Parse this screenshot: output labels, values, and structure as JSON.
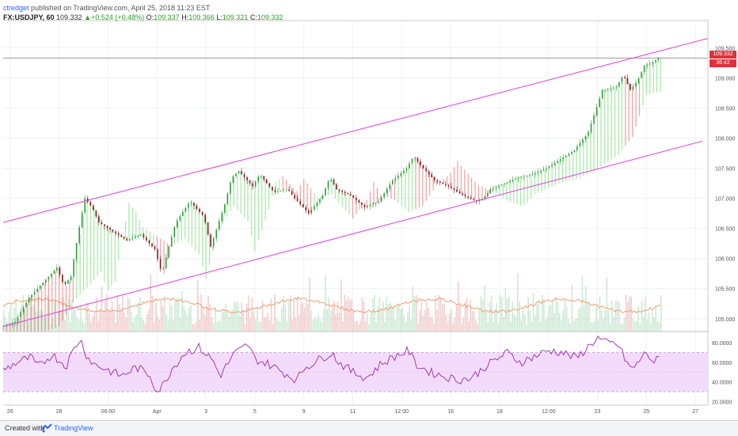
{
  "header": {
    "author": "ctredget",
    "published": "published on TradingView.com, April 25, 2018 11:23 EST",
    "symbol": "FX:USDJPY, 60",
    "last": "109.332",
    "change": "+0.524 (+0.48%)",
    "open_label": "O:",
    "open": "109.337",
    "high_label": "H:",
    "high": "109.366",
    "low_label": "L:",
    "low": "109.321",
    "close_label": "C:",
    "close": "109.332"
  },
  "price_tag": {
    "price": "109.332",
    "countdown": "36:42"
  },
  "footer": {
    "created": "Created with",
    "brand": "TradingView"
  },
  "colors": {
    "up_candle": "#2e9e3a",
    "down_candle": "#7a1d1d",
    "ribbon_bull": "#3ecf3e",
    "ribbon_bear": "#e03030",
    "channel": "#e24de0",
    "rsi_line": "#9c27b0",
    "rsi_band": "#f3dcfb",
    "vol_ma": "#f0a070"
  },
  "chart_data": [
    {
      "type": "line",
      "name": "price",
      "y_ticks": [
        "109.500",
        "109.000",
        "108.500",
        "108.000",
        "107.500",
        "107.000",
        "106.500",
        "106.000",
        "105.500",
        "105.000"
      ],
      "ylim": [
        104.8,
        109.9
      ],
      "x_ticks": [
        "26",
        "28",
        "06:00",
        "Apr",
        "3",
        "5",
        "9",
        "11",
        "12:00",
        "16",
        "18",
        "12:00",
        "23",
        "25",
        "27"
      ],
      "price_path": [
        [
          0,
          104.87
        ],
        [
          2,
          104.95
        ],
        [
          4,
          105.35
        ],
        [
          6,
          105.6
        ],
        [
          8,
          105.85
        ],
        [
          9,
          105.55
        ],
        [
          10,
          105.7
        ],
        [
          11,
          106.4
        ],
        [
          12,
          107.0
        ],
        [
          13,
          106.85
        ],
        [
          14,
          106.6
        ],
        [
          16,
          106.45
        ],
        [
          18,
          106.3
        ],
        [
          20,
          106.4
        ],
        [
          22,
          106.15
        ],
        [
          23,
          105.75
        ],
        [
          24,
          106.2
        ],
        [
          25,
          106.6
        ],
        [
          27,
          106.95
        ],
        [
          29,
          106.7
        ],
        [
          30,
          106.2
        ],
        [
          32,
          106.9
        ],
        [
          33,
          107.35
        ],
        [
          34,
          107.45
        ],
        [
          36,
          107.2
        ],
        [
          37,
          107.4
        ],
        [
          39,
          107.1
        ],
        [
          41,
          107.15
        ],
        [
          42,
          107.0
        ],
        [
          44,
          106.75
        ],
        [
          46,
          107.05
        ],
        [
          47,
          107.35
        ],
        [
          48,
          107.15
        ],
        [
          50,
          107.05
        ],
        [
          52,
          106.85
        ],
        [
          54,
          106.95
        ],
        [
          56,
          107.3
        ],
        [
          58,
          107.5
        ],
        [
          59,
          107.7
        ],
        [
          60,
          107.55
        ],
        [
          62,
          107.3
        ],
        [
          64,
          107.2
        ],
        [
          66,
          107.05
        ],
        [
          68,
          106.95
        ],
        [
          69,
          107.0
        ],
        [
          70,
          107.15
        ],
        [
          72,
          107.25
        ],
        [
          74,
          107.35
        ],
        [
          76,
          107.4
        ],
        [
          78,
          107.5
        ],
        [
          80,
          107.65
        ],
        [
          82,
          107.8
        ],
        [
          84,
          108.1
        ],
        [
          85,
          108.45
        ],
        [
          86,
          108.8
        ],
        [
          88,
          108.85
        ],
        [
          89,
          109.05
        ],
        [
          90,
          108.8
        ],
        [
          91,
          108.95
        ],
        [
          92,
          109.2
        ],
        [
          93,
          109.25
        ],
        [
          94,
          109.33
        ]
      ],
      "ribbon_bear_segments": [
        [
          0,
          10
        ],
        [
          22,
          24
        ],
        [
          40,
          44
        ],
        [
          50,
          56
        ],
        [
          59,
          70
        ],
        [
          89,
          91
        ]
      ],
      "channel_upper": [
        [
          0,
          106.6
        ],
        [
          94,
          109.45
        ]
      ],
      "channel_lower": [
        [
          0,
          104.87
        ],
        [
          94,
          107.65
        ],
        [
          100,
          107.95
        ]
      ],
      "last_price_line": 109.332
    },
    {
      "type": "bar",
      "name": "volume",
      "x_index_range": [
        0,
        94
      ]
    },
    {
      "type": "line",
      "name": "rsi",
      "y_ticks": [
        "80.0000",
        "60.0000",
        "40.0000",
        "20.0000"
      ],
      "ylim": [
        18,
        88
      ],
      "band": [
        30,
        70
      ],
      "midline": 50,
      "rsi_values": [
        [
          0,
          52
        ],
        [
          2,
          60
        ],
        [
          4,
          65
        ],
        [
          5,
          55
        ],
        [
          7,
          68
        ],
        [
          9,
          56
        ],
        [
          10,
          72
        ],
        [
          11,
          84
        ],
        [
          12,
          66
        ],
        [
          13,
          58
        ],
        [
          15,
          52
        ],
        [
          17,
          46
        ],
        [
          19,
          55
        ],
        [
          21,
          47
        ],
        [
          22,
          30
        ],
        [
          23,
          38
        ],
        [
          24,
          52
        ],
        [
          26,
          70
        ],
        [
          28,
          75
        ],
        [
          30,
          62
        ],
        [
          31,
          46
        ],
        [
          33,
          68
        ],
        [
          35,
          78
        ],
        [
          36,
          63
        ],
        [
          38,
          58
        ],
        [
          40,
          50
        ],
        [
          42,
          42
        ],
        [
          43,
          54
        ],
        [
          45,
          62
        ],
        [
          47,
          70
        ],
        [
          48,
          60
        ],
        [
          50,
          50
        ],
        [
          52,
          44
        ],
        [
          54,
          58
        ],
        [
          56,
          66
        ],
        [
          58,
          72
        ],
        [
          59,
          58
        ],
        [
          61,
          50
        ],
        [
          63,
          46
        ],
        [
          65,
          42
        ],
        [
          67,
          44
        ],
        [
          69,
          56
        ],
        [
          71,
          65
        ],
        [
          72,
          70
        ],
        [
          74,
          60
        ],
        [
          76,
          66
        ],
        [
          78,
          72
        ],
        [
          80,
          70
        ],
        [
          82,
          64
        ],
        [
          84,
          78
        ],
        [
          85,
          85
        ],
        [
          86,
          80
        ],
        [
          88,
          78
        ],
        [
          89,
          62
        ],
        [
          90,
          52
        ],
        [
          91,
          62
        ],
        [
          92,
          70
        ],
        [
          93,
          60
        ],
        [
          94,
          64
        ]
      ]
    }
  ]
}
